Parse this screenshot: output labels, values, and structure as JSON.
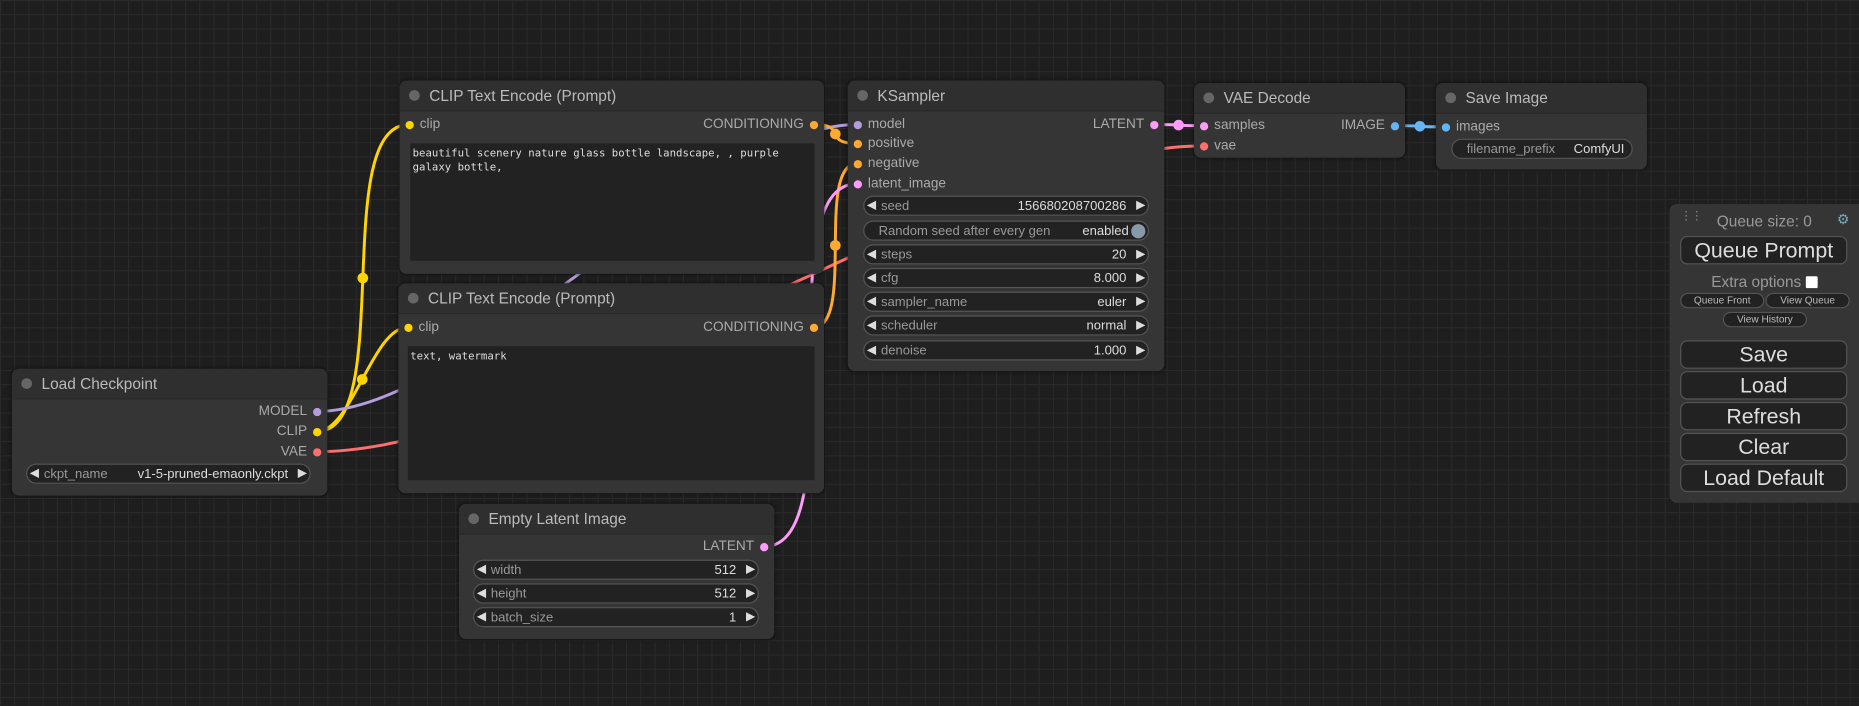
{
  "colors": {
    "clip": "#ffd500",
    "model": "#b39ddb",
    "vae": "#ff6e6e",
    "conditioning": "#ffa931",
    "latent": "#ff9cf9",
    "image": "#64b5f6"
  },
  "nodes": {
    "clip1": {
      "title": "CLIP Text Encode (Prompt)",
      "input": "clip",
      "output": "CONDITIONING",
      "text": "beautiful scenery nature glass bottle landscape, , purple galaxy bottle,"
    },
    "clip2": {
      "title": "CLIP Text Encode (Prompt)",
      "input": "clip",
      "output": "CONDITIONING",
      "text": "text, watermark"
    },
    "checkpoint": {
      "title": "Load Checkpoint",
      "outputs": [
        "MODEL",
        "CLIP",
        "VAE"
      ],
      "widget": {
        "label": "ckpt_name",
        "value": "v1-5-pruned-emaonly.ckpt"
      }
    },
    "latent": {
      "title": "Empty Latent Image",
      "output": "LATENT",
      "widgets": [
        {
          "label": "width",
          "value": "512"
        },
        {
          "label": "height",
          "value": "512"
        },
        {
          "label": "batch_size",
          "value": "1"
        }
      ]
    },
    "ksampler": {
      "title": "KSampler",
      "inputs": [
        "model",
        "positive",
        "negative",
        "latent_image"
      ],
      "output": "LATENT",
      "seed": {
        "label": "seed",
        "value": "156680208700286"
      },
      "toggle": {
        "label": "Random seed after every gen",
        "value": "enabled"
      },
      "widgets": [
        {
          "label": "steps",
          "value": "20"
        },
        {
          "label": "cfg",
          "value": "8.000"
        },
        {
          "label": "sampler_name",
          "value": "euler"
        },
        {
          "label": "scheduler",
          "value": "normal"
        },
        {
          "label": "denoise",
          "value": "1.000"
        }
      ]
    },
    "vaedecode": {
      "title": "VAE Decode",
      "inputs": [
        "samples",
        "vae"
      ],
      "output": "IMAGE"
    },
    "save": {
      "title": "Save Image",
      "input": "images",
      "widget": {
        "label": "filename_prefix",
        "value": "ComfyUI"
      }
    }
  },
  "panel": {
    "queue_size": "Queue size: 0",
    "queue_prompt": "Queue Prompt",
    "extra_options": "Extra options",
    "queue_front": "Queue Front",
    "view_queue": "View Queue",
    "view_history": "View History",
    "save": "Save",
    "load": "Load",
    "refresh": "Refresh",
    "clear": "Clear",
    "load_default": "Load Default"
  }
}
